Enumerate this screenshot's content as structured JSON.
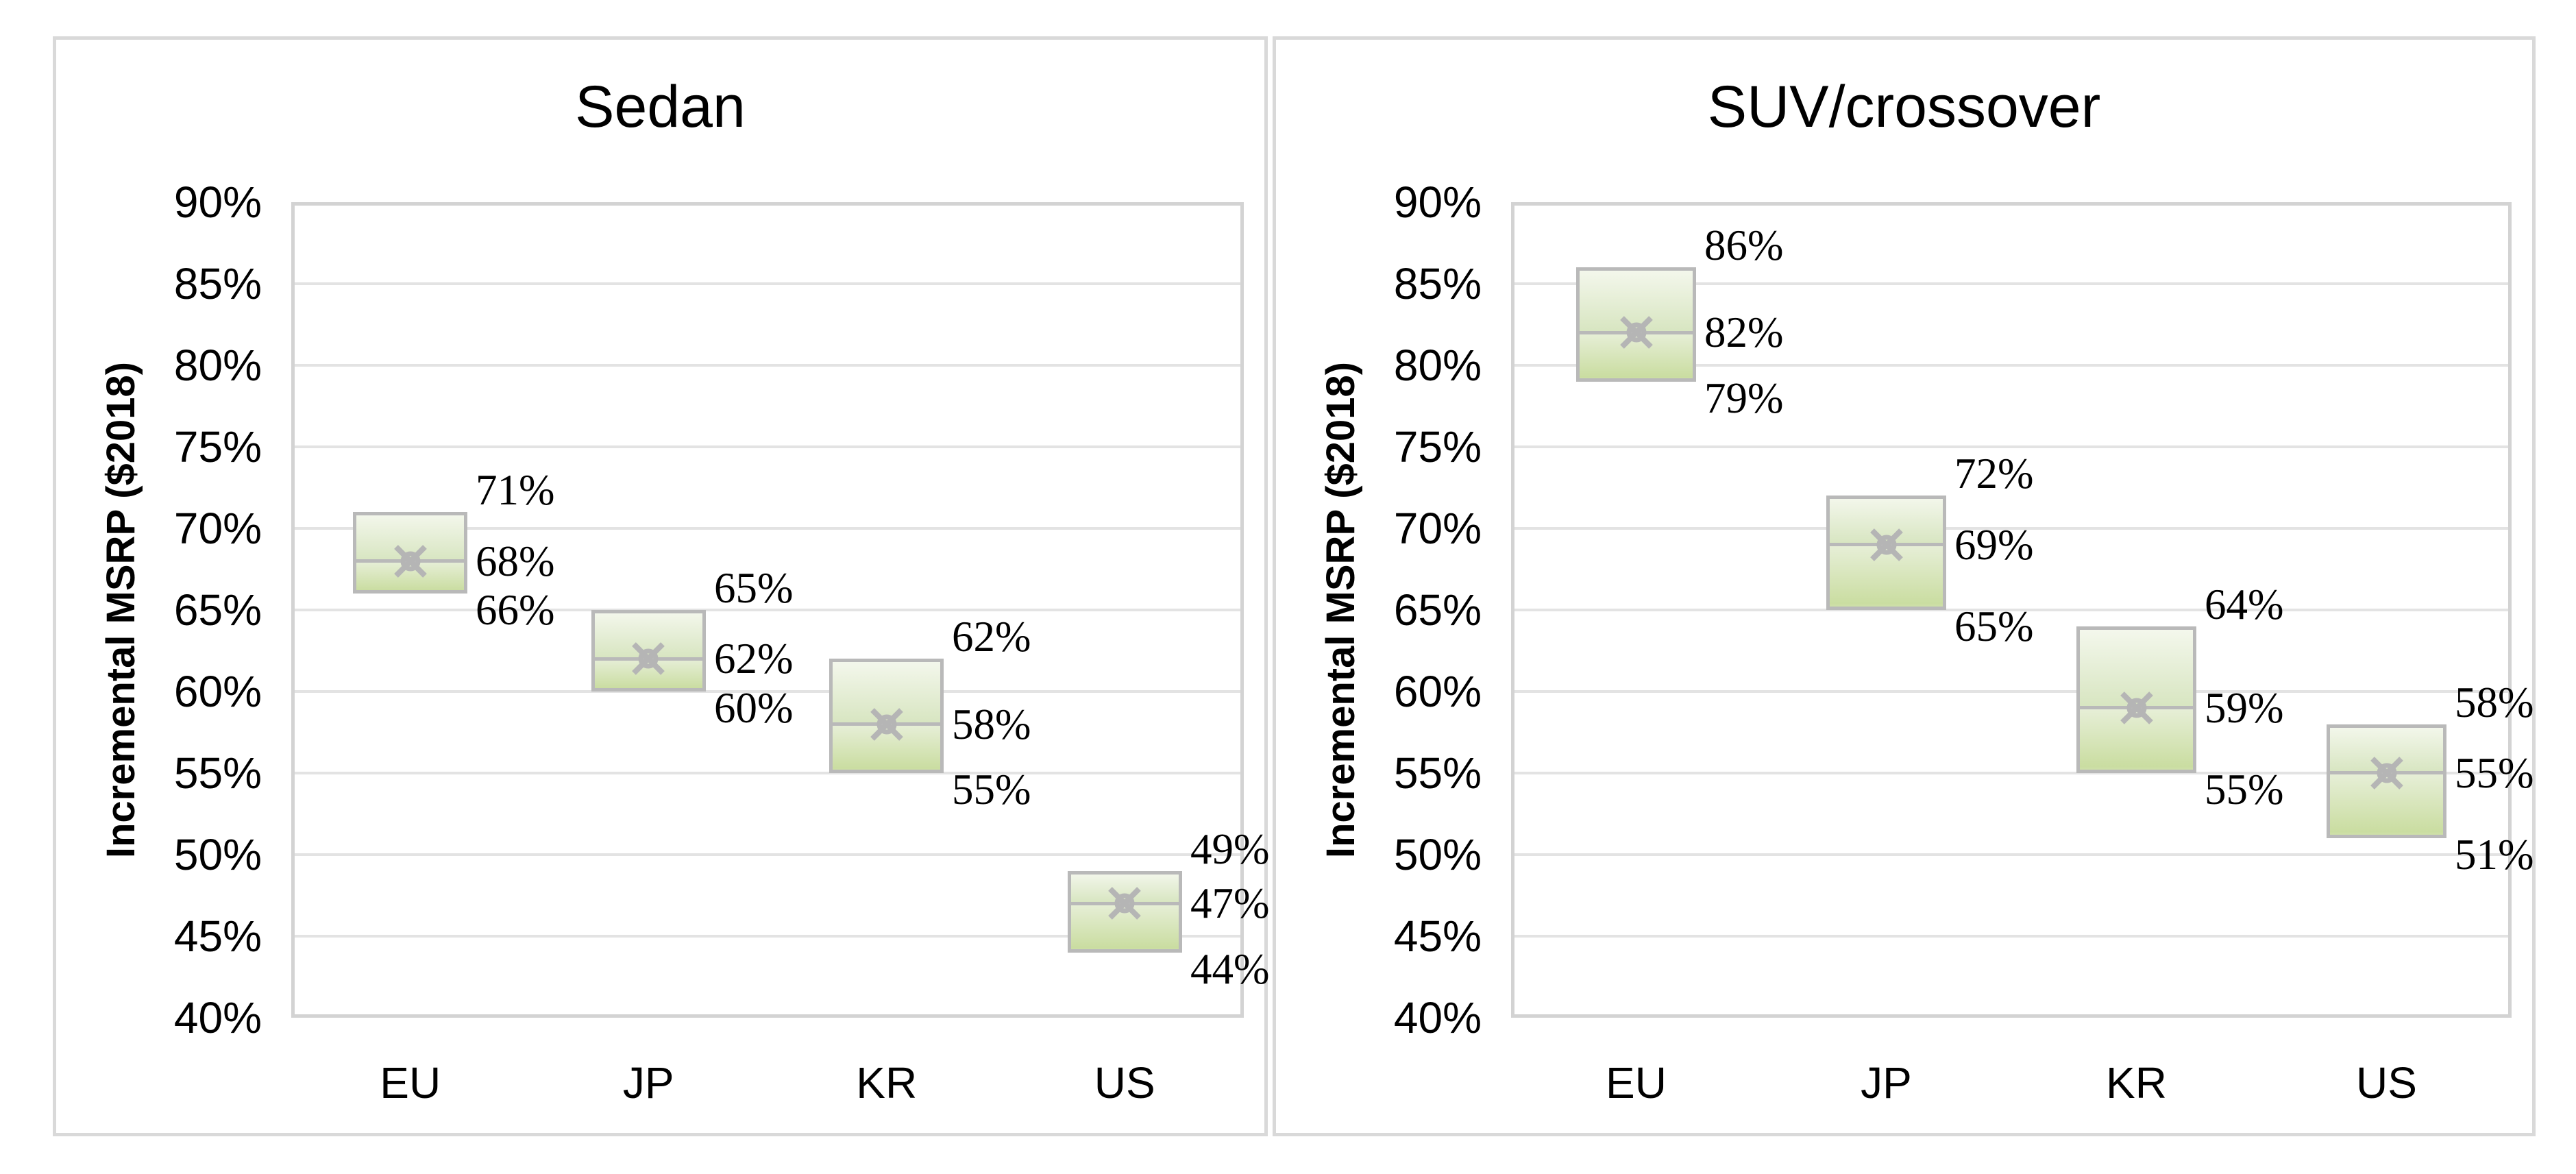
{
  "figure": {
    "background": "#ffffff",
    "panel_border_color": "#d9d9d9",
    "plot_frame_color": "#d3d3d3",
    "gridline_color": "#e3e3e3",
    "box_border_color": "#b9b9b9",
    "box_fill_top": "#f5f8ee",
    "box_fill_bottom": "#cadda1",
    "marker_color": "#b5b5b5",
    "marker_shape": "x-with-circle"
  },
  "chart_data": [
    {
      "type": "box",
      "title": "Sedan",
      "ylabel": "Incremental MSRP ($2018)",
      "ylim": [
        40,
        90
      ],
      "ytick_step": 5,
      "ytick_labels": [
        "90%",
        "85%",
        "80%",
        "75%",
        "70%",
        "65%",
        "60%",
        "55%",
        "50%",
        "45%",
        "40%"
      ],
      "grid": true,
      "legend": "none",
      "categories": [
        "EU",
        "JP",
        "KR",
        "US"
      ],
      "series": [
        {
          "name": "high",
          "values": [
            71,
            65,
            62,
            49
          ],
          "labels": [
            "71%",
            "65%",
            "62%",
            "49%"
          ]
        },
        {
          "name": "mean",
          "values": [
            68,
            62,
            58,
            47
          ],
          "labels": [
            "68%",
            "62%",
            "58%",
            "47%"
          ]
        },
        {
          "name": "low",
          "values": [
            66,
            60,
            55,
            44
          ],
          "labels": [
            "66%",
            "60%",
            "55%",
            "44%"
          ]
        }
      ]
    },
    {
      "type": "box",
      "title": "SUV/crossover",
      "ylabel": "Incremental MSRP ($2018)",
      "ylim": [
        40,
        90
      ],
      "ytick_step": 5,
      "ytick_labels": [
        "90%",
        "85%",
        "80%",
        "75%",
        "70%",
        "65%",
        "60%",
        "55%",
        "50%",
        "45%",
        "40%"
      ],
      "grid": true,
      "legend": "none",
      "categories": [
        "EU",
        "JP",
        "KR",
        "US"
      ],
      "series": [
        {
          "name": "high",
          "values": [
            86,
            72,
            64,
            58
          ],
          "labels": [
            "86%",
            "72%",
            "64%",
            "58%"
          ]
        },
        {
          "name": "mean",
          "values": [
            82,
            69,
            59,
            55
          ],
          "labels": [
            "82%",
            "69%",
            "59%",
            "55%"
          ]
        },
        {
          "name": "low",
          "values": [
            79,
            65,
            55,
            51
          ],
          "labels": [
            "79%",
            "65%",
            "55%",
            "51%"
          ]
        }
      ]
    }
  ]
}
